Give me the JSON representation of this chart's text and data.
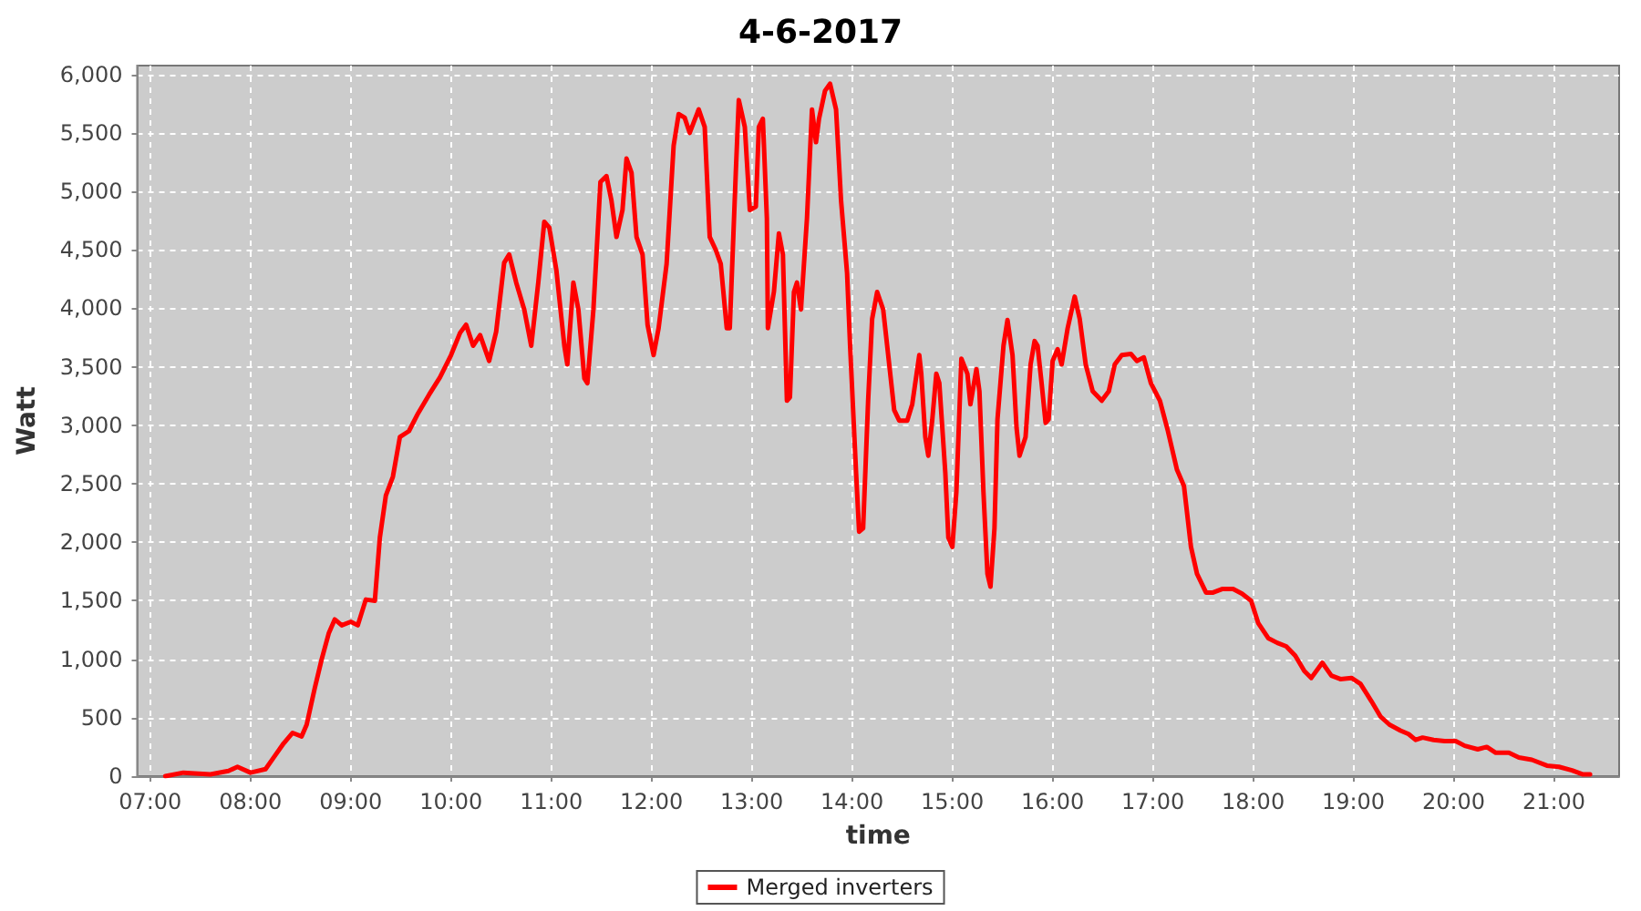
{
  "chart_data": {
    "type": "line",
    "title": "4-6-2017",
    "xlabel": "time",
    "ylabel": "Watt",
    "x": [
      7.15,
      7.33,
      7.6,
      7.78,
      7.87,
      8.0,
      8.15,
      8.24,
      8.33,
      8.42,
      8.51,
      8.56,
      8.64,
      8.71,
      8.78,
      8.84,
      8.91,
      9.0,
      9.07,
      9.15,
      9.24,
      9.29,
      9.35,
      9.42,
      9.49,
      9.58,
      9.67,
      9.78,
      9.89,
      10.0,
      10.09,
      10.15,
      10.22,
      10.29,
      10.38,
      10.45,
      10.53,
      10.58,
      10.65,
      10.73,
      10.8,
      10.87,
      10.93,
      10.98,
      11.05,
      11.13,
      11.16,
      11.22,
      11.27,
      11.33,
      11.36,
      11.42,
      11.49,
      11.55,
      11.6,
      11.65,
      11.71,
      11.75,
      11.8,
      11.85,
      11.91,
      11.96,
      12.02,
      12.07,
      12.15,
      12.22,
      12.27,
      12.33,
      12.38,
      12.47,
      12.53,
      12.58,
      12.64,
      12.69,
      12.75,
      12.78,
      12.84,
      12.87,
      12.93,
      12.98,
      13.04,
      13.07,
      13.11,
      13.15,
      13.16,
      13.22,
      13.27,
      13.31,
      13.35,
      13.38,
      13.42,
      13.45,
      13.49,
      13.55,
      13.6,
      13.64,
      13.67,
      13.73,
      13.78,
      13.84,
      13.89,
      13.95,
      13.98,
      14.04,
      14.07,
      14.11,
      14.16,
      14.2,
      14.25,
      14.31,
      14.36,
      14.42,
      14.47,
      14.55,
      14.6,
      14.67,
      14.69,
      14.73,
      14.76,
      14.8,
      14.84,
      14.87,
      14.93,
      14.96,
      15.0,
      15.04,
      15.09,
      15.15,
      15.18,
      15.24,
      15.27,
      15.31,
      15.35,
      15.38,
      15.42,
      15.45,
      15.51,
      15.55,
      15.6,
      15.64,
      15.67,
      15.73,
      15.78,
      15.82,
      15.85,
      15.89,
      15.93,
      15.96,
      16.0,
      16.05,
      16.09,
      16.15,
      16.22,
      16.27,
      16.33,
      16.4,
      16.49,
      16.56,
      16.62,
      16.69,
      16.78,
      16.84,
      16.91,
      16.98,
      17.07,
      17.15,
      17.24,
      17.31,
      17.38,
      17.44,
      17.53,
      17.6,
      17.69,
      17.8,
      17.89,
      17.98,
      18.05,
      18.15,
      18.24,
      18.33,
      18.42,
      18.51,
      18.58,
      18.69,
      18.78,
      18.87,
      18.98,
      19.07,
      19.18,
      19.27,
      19.36,
      19.47,
      19.55,
      19.62,
      19.69,
      19.8,
      19.91,
      20.02,
      20.11,
      20.24,
      20.33,
      20.42,
      20.55,
      20.65,
      20.78,
      20.93,
      21.05,
      21.18,
      21.29,
      21.36
    ],
    "series": [
      {
        "name": "Merged inverters",
        "color": "#ff0000",
        "values": [
          0,
          30,
          15,
          45,
          80,
          30,
          60,
          170,
          280,
          370,
          340,
          440,
          750,
          1000,
          1220,
          1340,
          1290,
          1320,
          1290,
          1510,
          1500,
          2040,
          2400,
          2560,
          2900,
          2950,
          3100,
          3260,
          3410,
          3600,
          3790,
          3860,
          3680,
          3770,
          3550,
          3800,
          4390,
          4460,
          4220,
          3990,
          3680,
          4220,
          4740,
          4690,
          4330,
          3680,
          3520,
          4220,
          3990,
          3400,
          3360,
          3990,
          5080,
          5130,
          4920,
          4610,
          4840,
          5280,
          5160,
          4610,
          4460,
          3860,
          3600,
          3830,
          4380,
          5390,
          5660,
          5630,
          5500,
          5700,
          5550,
          4610,
          4500,
          4380,
          3830,
          3830,
          5160,
          5780,
          5550,
          4840,
          4870,
          5550,
          5620,
          4770,
          3830,
          4140,
          4640,
          4460,
          3210,
          3240,
          4140,
          4220,
          3990,
          4770,
          5700,
          5420,
          5620,
          5860,
          5920,
          5700,
          4920,
          4300,
          3680,
          2590,
          2090,
          2120,
          3210,
          3910,
          4140,
          3990,
          3600,
          3130,
          3040,
          3040,
          3180,
          3600,
          3440,
          2900,
          2740,
          3050,
          3440,
          3360,
          2590,
          2040,
          1960,
          2430,
          3570,
          3440,
          3180,
          3480,
          3290,
          2430,
          1730,
          1620,
          2120,
          3050,
          3680,
          3900,
          3600,
          2980,
          2740,
          2900,
          3520,
          3720,
          3680,
          3360,
          3020,
          3050,
          3550,
          3650,
          3520,
          3830,
          4100,
          3910,
          3520,
          3290,
          3210,
          3290,
          3520,
          3600,
          3610,
          3550,
          3580,
          3360,
          3210,
          2950,
          2620,
          2480,
          1960,
          1730,
          1570,
          1570,
          1600,
          1600,
          1560,
          1500,
          1310,
          1180,
          1140,
          1110,
          1030,
          900,
          840,
          970,
          860,
          830,
          840,
          790,
          640,
          510,
          440,
          390,
          360,
          310,
          330,
          310,
          300,
          300,
          260,
          230,
          250,
          200,
          200,
          160,
          140,
          90,
          80,
          50,
          15,
          15
        ]
      }
    ],
    "xlim": [
      6.87,
      21.65
    ],
    "xticks": [
      {
        "value": 7,
        "label": "07:00"
      },
      {
        "value": 8,
        "label": "08:00"
      },
      {
        "value": 9,
        "label": "09:00"
      },
      {
        "value": 10,
        "label": "10:00"
      },
      {
        "value": 11,
        "label": "11:00"
      },
      {
        "value": 12,
        "label": "12:00"
      },
      {
        "value": 13,
        "label": "13:00"
      },
      {
        "value": 14,
        "label": "14:00"
      },
      {
        "value": 15,
        "label": "15:00"
      },
      {
        "value": 16,
        "label": "16:00"
      },
      {
        "value": 17,
        "label": "17:00"
      },
      {
        "value": 18,
        "label": "18:00"
      },
      {
        "value": 19,
        "label": "19:00"
      },
      {
        "value": 20,
        "label": "20:00"
      },
      {
        "value": 21,
        "label": "21:00"
      }
    ],
    "ylim": [
      0,
      6075
    ],
    "yticks": [
      0,
      500,
      {
        "value": 1000,
        "label": "1,000"
      },
      {
        "value": 1500,
        "label": "1,500"
      },
      {
        "value": 2000,
        "label": "2,000"
      },
      {
        "value": 2500,
        "label": "2,500"
      },
      {
        "value": 3000,
        "label": "3,000"
      },
      {
        "value": 3500,
        "label": "3,500"
      },
      {
        "value": 4000,
        "label": "4,000"
      },
      {
        "value": 4500,
        "label": "4,500"
      },
      {
        "value": 5000,
        "label": "5,000"
      },
      {
        "value": 5500,
        "label": "5,500"
      },
      {
        "value": 6000,
        "label": "6,000"
      }
    ],
    "grid": true,
    "legend": "bottom",
    "marker": "none",
    "line_style": "solid"
  }
}
